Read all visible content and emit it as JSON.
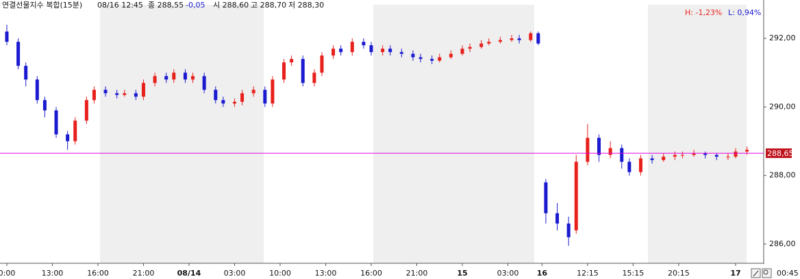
{
  "chart_data": {
    "type": "candlestick",
    "title": "연결선물지수 복합(15분)",
    "datetime": "08/16 12:45",
    "close_text": "종 288,55",
    "change_text": "-0,05",
    "open_text": "시 288,60",
    "high_text": "고 288,70",
    "low_text": "저 288,30",
    "high_pct": "H: -1,23%",
    "low_pct": "L: 0,94%",
    "axis_end_label": "00:45",
    "up_color": "#e8201c",
    "down_color": "#1a1ad0",
    "x": [
      0,
      3,
      5,
      8,
      10,
      13,
      16,
      18,
      21,
      23,
      26,
      29,
      31,
      34,
      36,
      39,
      42,
      44,
      47,
      49,
      52,
      55,
      57,
      60,
      62,
      65,
      68,
      70,
      73,
      75,
      78,
      81,
      83,
      86,
      88,
      91,
      94,
      96,
      99,
      101,
      104,
      107,
      109,
      112,
      114,
      117,
      120,
      122,
      125,
      127,
      130,
      133,
      135,
      138,
      140,
      142,
      145,
      148,
      150,
      153,
      156,
      159,
      162,
      164,
      167,
      170,
      173,
      176,
      178,
      181,
      184,
      187,
      190,
      192,
      195
    ],
    "open": [
      292.2,
      291.9,
      291.2,
      290.8,
      290.2,
      289.9,
      289.2,
      289.0,
      289.6,
      290.2,
      290.5,
      290.4,
      290.35,
      290.4,
      290.3,
      290.7,
      290.9,
      290.8,
      291.0,
      290.8,
      290.9,
      290.5,
      290.2,
      290.1,
      290.15,
      290.4,
      290.5,
      290.1,
      290.8,
      291.3,
      291.4,
      290.7,
      291.0,
      291.5,
      291.7,
      291.6,
      291.9,
      291.8,
      291.6,
      291.7,
      291.6,
      291.55,
      291.45,
      291.4,
      291.35,
      291.45,
      291.55,
      291.7,
      291.75,
      291.85,
      291.9,
      291.95,
      292.0,
      291.95,
      292.15,
      287.8,
      286.9,
      286.6,
      286.4,
      288.4,
      289.1,
      288.6,
      288.8,
      288.4,
      288.1,
      288.5,
      288.45,
      288.55,
      288.6,
      288.6,
      288.65,
      288.6,
      288.55,
      288.55,
      288.7
    ],
    "high": [
      292.4,
      292.0,
      291.3,
      290.9,
      290.3,
      290.0,
      289.3,
      289.7,
      290.3,
      290.6,
      290.6,
      290.5,
      290.5,
      290.5,
      290.8,
      291.0,
      291.0,
      291.1,
      291.1,
      291.0,
      291.0,
      290.6,
      290.3,
      290.25,
      290.5,
      290.6,
      290.6,
      290.9,
      291.4,
      291.5,
      291.5,
      291.1,
      291.6,
      291.8,
      291.8,
      292.0,
      292.0,
      291.9,
      291.8,
      291.8,
      291.7,
      291.65,
      291.55,
      291.5,
      291.55,
      291.65,
      291.8,
      291.85,
      291.95,
      292.0,
      292.05,
      292.1,
      292.1,
      292.2,
      292.2,
      287.9,
      287.2,
      286.8,
      288.6,
      289.5,
      289.2,
      289.0,
      288.9,
      288.5,
      288.6,
      288.6,
      288.65,
      288.7,
      288.7,
      288.75,
      288.7,
      288.65,
      288.65,
      288.8,
      288.85
    ],
    "low": [
      291.8,
      291.1,
      290.6,
      290.1,
      289.7,
      289.1,
      288.75,
      288.9,
      289.5,
      290.1,
      290.3,
      290.25,
      290.3,
      290.2,
      290.2,
      290.6,
      290.7,
      290.7,
      290.7,
      290.7,
      290.4,
      290.1,
      290.0,
      290.0,
      290.05,
      290.3,
      290.0,
      290.0,
      290.7,
      291.2,
      290.6,
      290.6,
      290.9,
      291.4,
      291.5,
      291.5,
      291.7,
      291.5,
      291.5,
      291.5,
      291.45,
      291.35,
      291.3,
      291.25,
      291.3,
      291.4,
      291.5,
      291.6,
      291.7,
      291.8,
      291.85,
      291.9,
      291.85,
      291.9,
      291.8,
      286.6,
      286.4,
      285.95,
      286.3,
      288.3,
      288.4,
      288.5,
      288.2,
      288.0,
      288.0,
      288.35,
      288.4,
      288.45,
      288.5,
      288.55,
      288.5,
      288.45,
      288.45,
      288.5,
      288.6
    ],
    "close": [
      291.9,
      291.2,
      290.8,
      290.2,
      289.9,
      289.2,
      289.0,
      289.6,
      290.2,
      290.5,
      290.4,
      290.35,
      290.4,
      290.3,
      290.7,
      290.9,
      290.8,
      291.0,
      290.8,
      290.9,
      290.5,
      290.2,
      290.1,
      290.15,
      290.4,
      290.5,
      290.1,
      290.8,
      291.3,
      291.4,
      290.7,
      291.0,
      291.5,
      291.7,
      291.6,
      291.9,
      291.8,
      291.6,
      291.7,
      291.6,
      291.55,
      291.45,
      291.4,
      291.35,
      291.45,
      291.55,
      291.7,
      291.75,
      291.85,
      291.9,
      291.95,
      292.0,
      291.95,
      292.15,
      291.85,
      286.9,
      286.6,
      286.2,
      288.4,
      289.1,
      288.6,
      288.8,
      288.4,
      288.1,
      288.5,
      288.45,
      288.55,
      288.6,
      288.6,
      288.65,
      288.6,
      288.55,
      288.55,
      288.7,
      288.75
    ],
    "xlim": [
      -1.8,
      199.4
    ],
    "xticks": [
      {
        "value": 0,
        "label": "0:00"
      },
      {
        "value": 12,
        "label": "13:00"
      },
      {
        "value": 24,
        "label": "16:00"
      },
      {
        "value": 36,
        "label": "21:00"
      },
      {
        "value": 48,
        "label": "08/14"
      },
      {
        "value": 60,
        "label": "03:00"
      },
      {
        "value": 72,
        "label": "10:00"
      },
      {
        "value": 84,
        "label": "13:00"
      },
      {
        "value": 96,
        "label": "16:00"
      },
      {
        "value": 108,
        "label": "21:00"
      },
      {
        "value": 120,
        "label": "15"
      },
      {
        "value": 132,
        "label": "03:00"
      },
      {
        "value": 141,
        "label": "16"
      },
      {
        "value": 153,
        "label": "12:15"
      },
      {
        "value": 165,
        "label": "15:15"
      },
      {
        "value": 177,
        "label": "20:15"
      },
      {
        "value": 192,
        "label": "17"
      }
    ],
    "ylim": [
      285.44,
      293.02
    ],
    "yticks": [
      {
        "value": 286,
        "label": "286,00"
      },
      {
        "value": 288,
        "label": "288,00"
      },
      {
        "value": 290,
        "label": "290,00"
      },
      {
        "value": 292,
        "label": "292,00"
      }
    ],
    "reference_line": {
      "value": 288.65,
      "label": "288,65",
      "color": "#e000e0"
    }
  }
}
